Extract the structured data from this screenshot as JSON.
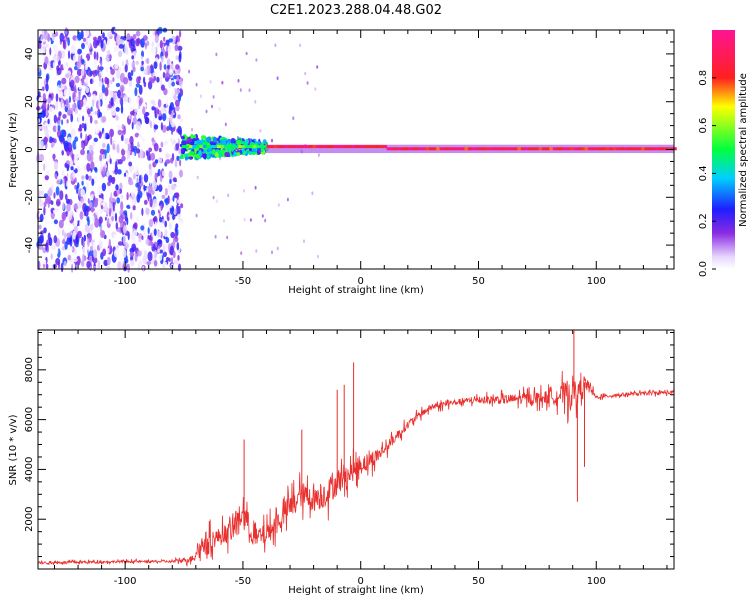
{
  "title": "C2E1.2023.288.04.48.G02",
  "chart_data": [
    {
      "type": "heatmap",
      "title": "C2E1.2023.288.04.48.G02",
      "xlabel": "Height of straight line (km)",
      "ylabel": "Frequency (Hz)",
      "xlim": [
        -137,
        133
      ],
      "ylim": [
        -50,
        50
      ],
      "xticks": [
        -100,
        -50,
        0,
        50,
        100
      ],
      "yticks": [
        -40,
        -20,
        0,
        20,
        40
      ],
      "colorbar": {
        "label": "Normalized spectral amplitude",
        "range": [
          0,
          1
        ],
        "ticks": [
          "0.0",
          "0.2",
          "0.4",
          "0.6",
          "0.8"
        ],
        "colormap": "rainbow (white-purple-blue-cyan-green-yellow-red-magenta)"
      },
      "regions": [
        {
          "x_range": [
            -137,
            -76
          ],
          "freq_range": [
            -50,
            50
          ],
          "amplitude": "0.0-0.3 scattered noise"
        },
        {
          "x_range": [
            -76,
            -40
          ],
          "freq_range": [
            -5,
            5
          ],
          "amplitude": "0.2-0.6"
        },
        {
          "x_range": [
            -40,
            133
          ],
          "freq_range": [
            -1,
            2
          ],
          "amplitude": "0.8-1.0 carrier line near 0 Hz"
        }
      ]
    },
    {
      "type": "line",
      "xlabel": "Height of straight line (km)",
      "ylabel": "SNR (10 * v/v)",
      "xlim": [
        -137,
        133
      ],
      "ylim": [
        0,
        9600
      ],
      "xticks": [
        -100,
        -50,
        0,
        50,
        100
      ],
      "yticks": [
        2000,
        4000,
        6000,
        8000
      ],
      "color": "#e8302e",
      "envelope": {
        "x": [
          -137,
          -100,
          -80,
          -72,
          -66,
          -60,
          -55,
          -50,
          -45,
          -40,
          -35,
          -30,
          -25,
          -20,
          -15,
          -10,
          -5,
          0,
          5,
          10,
          15,
          20,
          25,
          30,
          40,
          50,
          60,
          70,
          80,
          85,
          90,
          92,
          95,
          100,
          110,
          120,
          133
        ],
        "y": [
          250,
          300,
          300,
          400,
          1100,
          1300,
          1500,
          2300,
          1200,
          1400,
          1900,
          2500,
          3000,
          2800,
          3000,
          3500,
          3800,
          4200,
          4400,
          4800,
          5300,
          5800,
          6200,
          6500,
          6700,
          6800,
          6800,
          6850,
          6900,
          7000,
          7100,
          7000,
          7500,
          6900,
          7000,
          7050,
          7100
        ],
        "amp": [
          100,
          100,
          100,
          300,
          900,
          800,
          900,
          1200,
          900,
          900,
          1000,
          1100,
          1100,
          1100,
          1200,
          1200,
          900,
          900,
          700,
          500,
          400,
          350,
          300,
          280,
          250,
          300,
          400,
          500,
          600,
          900,
          1500,
          800,
          700,
          150,
          150,
          150,
          150
        ]
      },
      "spikes": [
        {
          "x": -49.5,
          "y": 5200
        },
        {
          "x": -25,
          "y": 5600
        },
        {
          "x": -10,
          "y": 7200
        },
        {
          "x": -7,
          "y": 7400
        },
        {
          "x": -3,
          "y": 8300
        },
        {
          "x": 90.5,
          "y": 9600
        },
        {
          "x": 92,
          "y": 2700
        },
        {
          "x": 95,
          "y": 4100
        }
      ]
    }
  ]
}
